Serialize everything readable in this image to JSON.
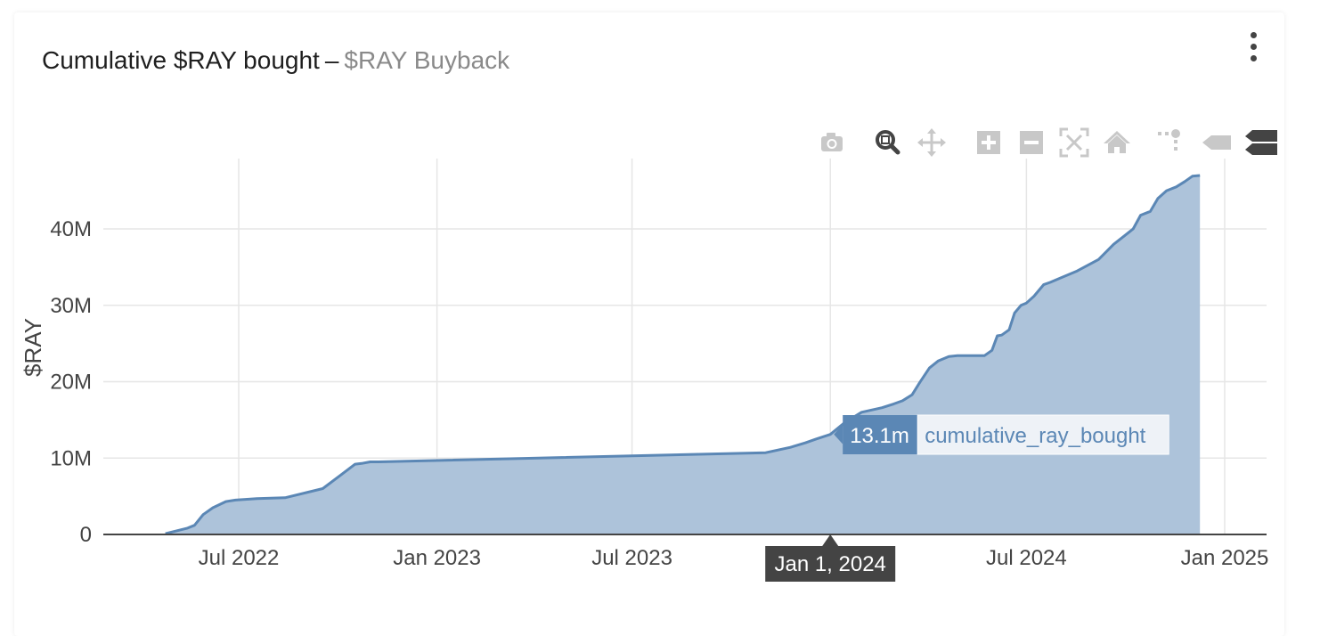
{
  "header": {
    "title": "Cumulative $RAY bought",
    "separator": "–",
    "subtitle": "$RAY Buyback"
  },
  "menu": {
    "icon": "kebab-menu-icon"
  },
  "modebar": {
    "buttons": [
      {
        "name": "download-plot-camera-icon",
        "active": false
      },
      {
        "name": "zoom-magnifier-icon",
        "active": true
      },
      {
        "name": "pan-move-icon",
        "active": false
      },
      {
        "name": "zoom-in-plus-icon",
        "active": false
      },
      {
        "name": "zoom-out-minus-icon",
        "active": false
      },
      {
        "name": "autoscale-icon",
        "active": false
      },
      {
        "name": "reset-axes-home-icon",
        "active": false
      },
      {
        "name": "toggle-spike-lines-icon",
        "active": false
      },
      {
        "name": "show-closest-hover-icon",
        "active": false
      },
      {
        "name": "compare-hover-icon",
        "active": true
      }
    ]
  },
  "colors": {
    "line": "#5b87b5",
    "fill": "#adc3da",
    "grid": "#e6e6e6",
    "hover_bg": "#5b87b5",
    "xhover_bg": "#444444"
  },
  "chart_data": {
    "type": "area",
    "ylabel": "$RAY",
    "ylim": [
      0,
      47000000
    ],
    "grid": true,
    "yticks": [
      {
        "value": 0,
        "label": "0"
      },
      {
        "value": 10000000,
        "label": "10M"
      },
      {
        "value": 20000000,
        "label": "20M"
      },
      {
        "value": 30000000,
        "label": "30M"
      },
      {
        "value": 40000000,
        "label": "40M"
      }
    ],
    "xticks": [
      {
        "date": "2022-07-01",
        "label": "Jul 2022"
      },
      {
        "date": "2023-01-01",
        "label": "Jan 2023"
      },
      {
        "date": "2023-07-01",
        "label": "Jul 2023"
      },
      {
        "date": "2024-01-01",
        "label": "Jan 2024"
      },
      {
        "date": "2024-07-01",
        "label": "Jul 2024"
      },
      {
        "date": "2025-01-01",
        "label": "Jan 2025"
      }
    ],
    "xlim": [
      "2022-01-21",
      "2025-01-09"
    ],
    "series": [
      {
        "x": [
          "2022-04-24",
          "2022-05-14",
          "2022-05-21",
          "2022-05-29",
          "2022-06-07",
          "2022-06-19",
          "2022-06-28",
          "2022-07-18",
          "2022-08-13",
          "2022-09-17",
          "2022-10-17",
          "2022-10-23",
          "2022-10-31",
          "2022-11-08",
          "2023-11-02",
          "2023-11-25",
          "2023-12-09",
          "2023-12-19",
          "2024-01-01",
          "2024-01-14",
          "2024-01-30",
          "2024-02-18",
          "2024-02-29",
          "2024-03-08",
          "2024-03-17",
          "2024-03-24",
          "2024-04-02",
          "2024-04-10",
          "2024-04-20",
          "2024-04-28",
          "2024-05-23",
          "2024-05-30",
          "2024-06-04",
          "2024-06-08",
          "2024-06-15",
          "2024-06-20",
          "2024-06-26",
          "2024-07-01",
          "2024-07-08",
          "2024-07-17",
          "2024-07-23",
          "2024-08-02",
          "2024-08-17",
          "2024-09-06",
          "2024-09-20",
          "2024-09-30",
          "2024-10-08",
          "2024-10-15",
          "2024-10-24",
          "2024-10-31",
          "2024-11-08",
          "2024-11-17",
          "2024-11-25",
          "2024-12-02",
          "2024-12-09"
        ],
        "y": [
          100000,
          800000,
          1200000,
          2600000,
          3500000,
          4300000,
          4500000,
          4700000,
          4800000,
          6000000,
          9200000,
          9300000,
          9500000,
          9500000,
          10700000,
          11400000,
          12000000,
          12500000,
          13100000,
          14600000,
          16000000,
          16600000,
          17100000,
          17500000,
          18300000,
          19900000,
          21800000,
          22700000,
          23300000,
          23400000,
          23400000,
          24100000,
          26000000,
          26100000,
          26800000,
          29000000,
          30000000,
          30300000,
          31200000,
          32700000,
          33000000,
          33600000,
          34500000,
          36000000,
          38000000,
          39100000,
          40000000,
          41800000,
          42300000,
          44000000,
          45000000,
          45500000,
          46200000,
          46900000,
          47000000
        ]
      }
    ],
    "hover": {
      "date_label": "Jan 1, 2024",
      "value_label": "13.1m",
      "series_label": "cumulative_ray_bought"
    }
  }
}
